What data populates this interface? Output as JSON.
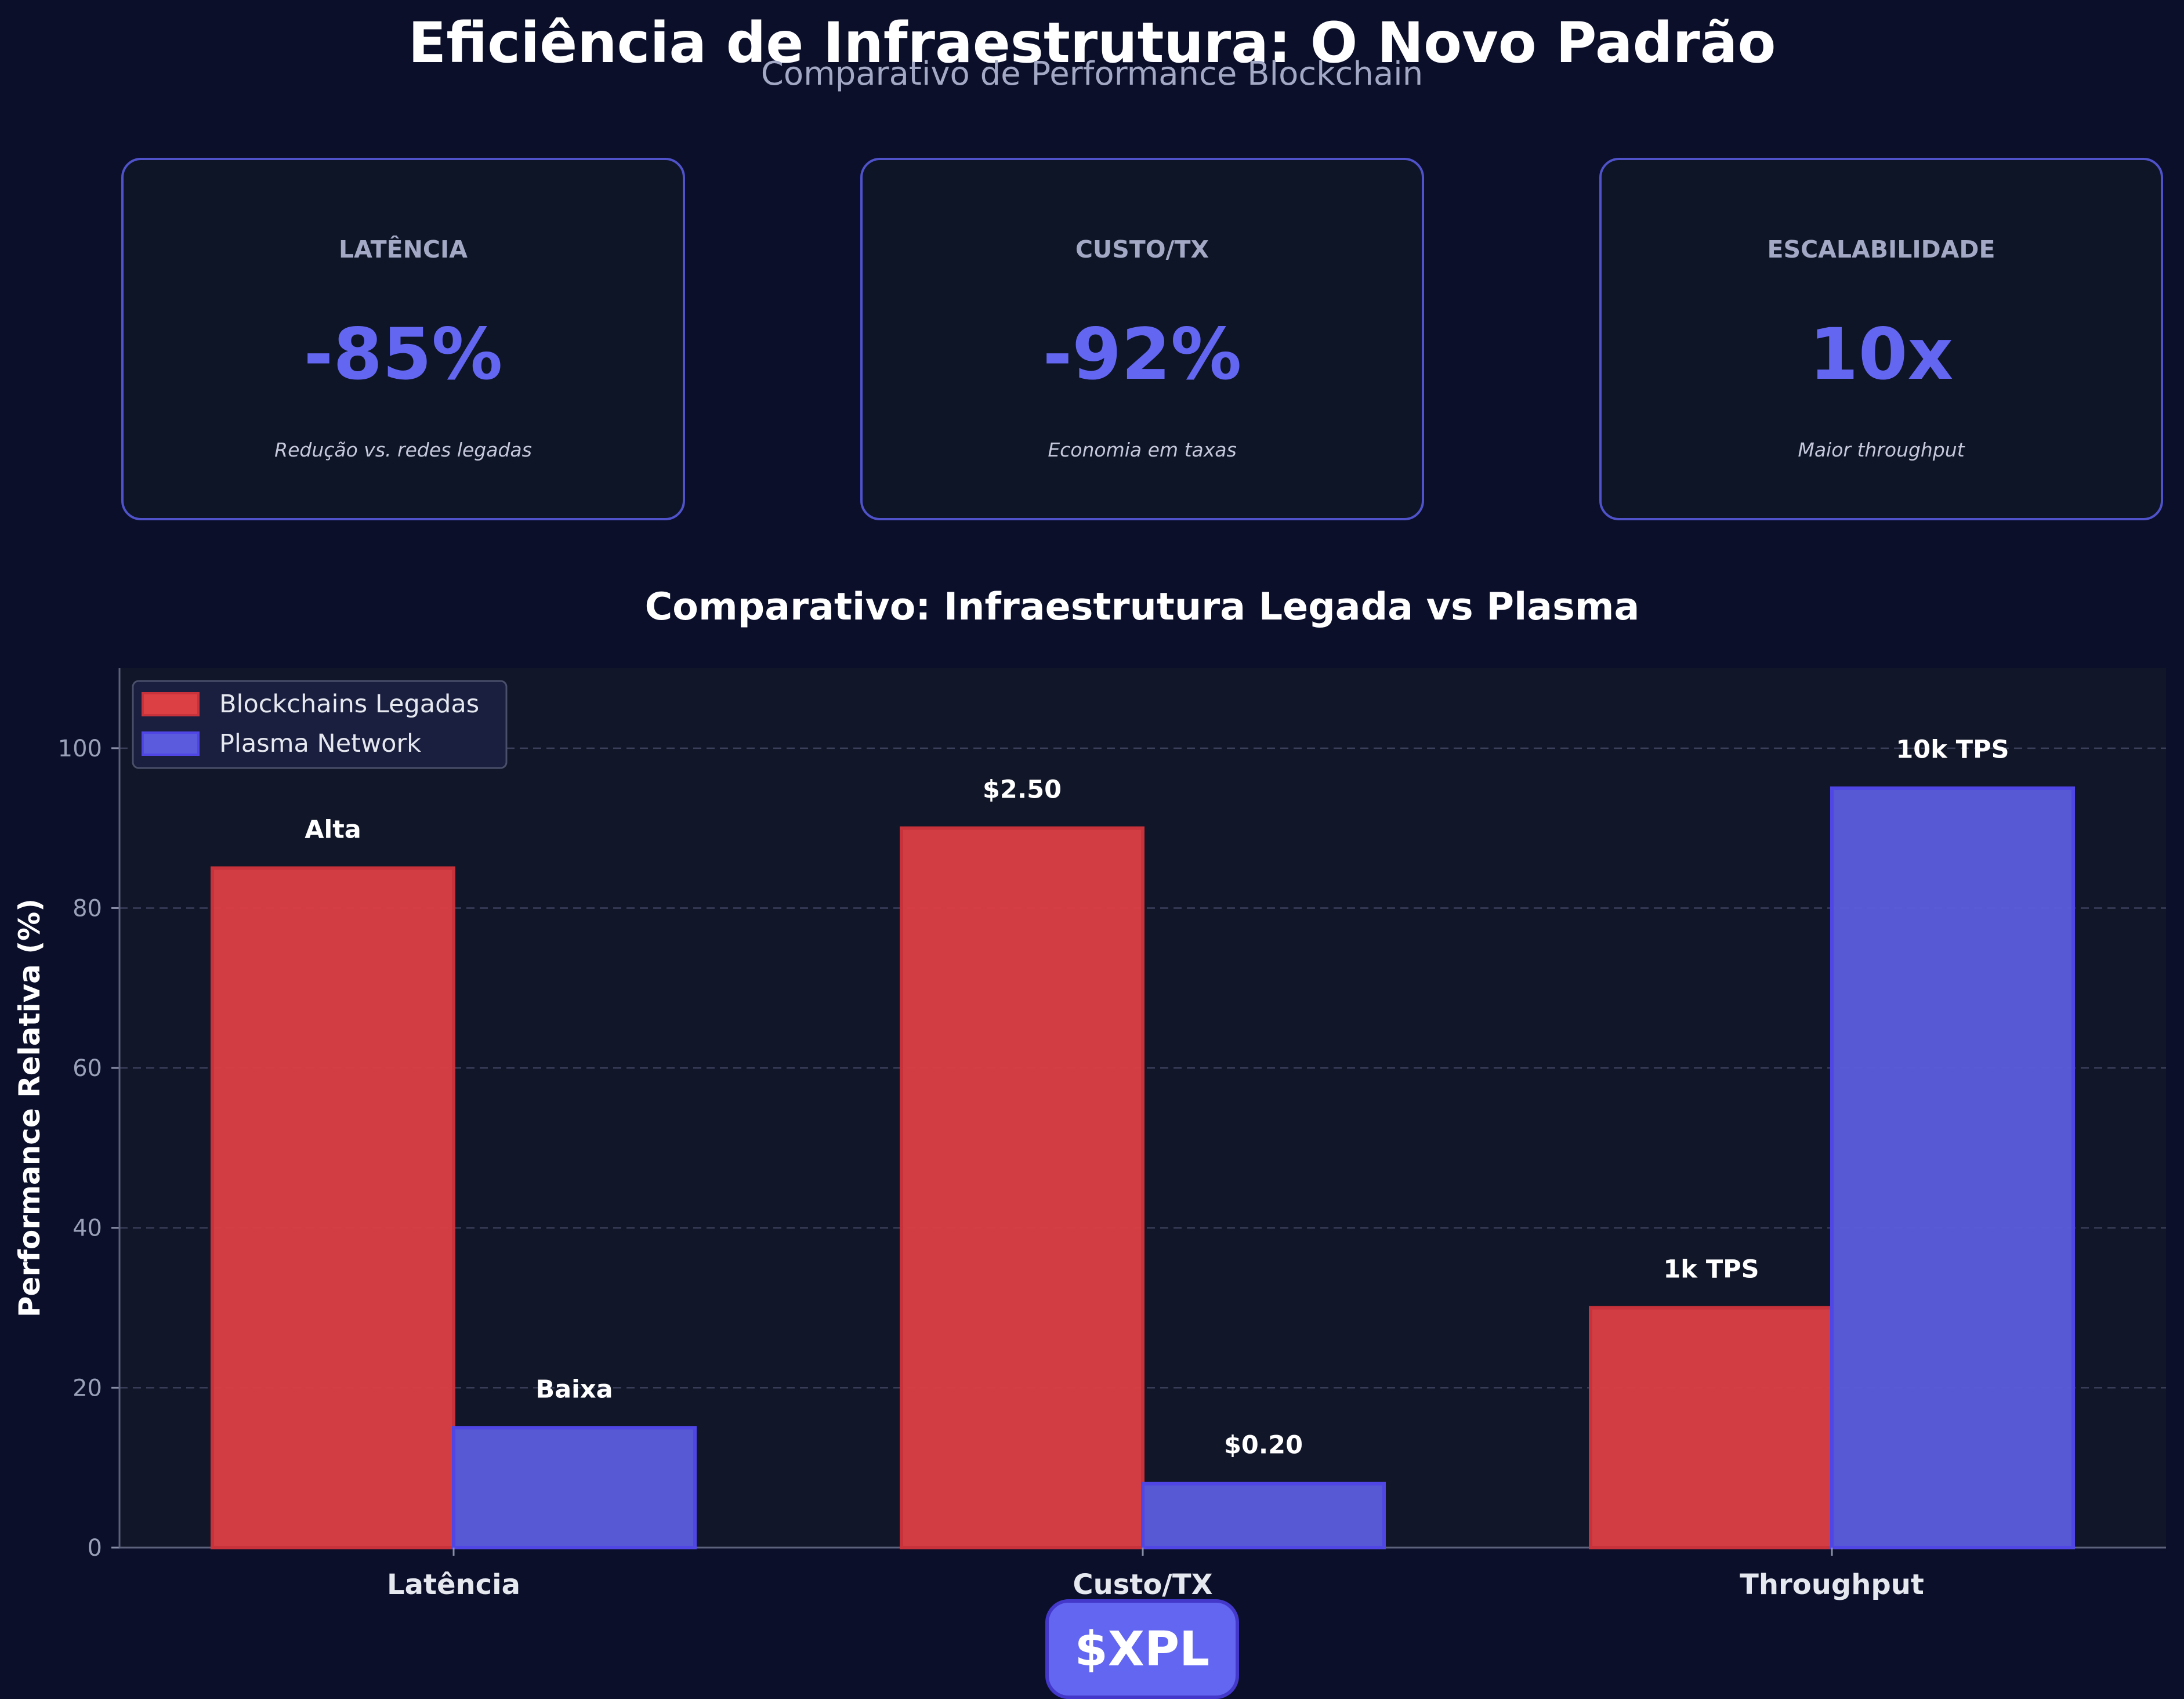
{
  "header": {
    "title": "Eficiência de Infraestrutura: O Novo Padrão",
    "subtitle": "Comparativo de Performance Blockchain"
  },
  "kpis": [
    {
      "label": "LATÊNCIA",
      "value": "-85%",
      "description": "Redução vs. redes legadas"
    },
    {
      "label": "CUSTO/TX",
      "value": "-92%",
      "description": "Economia em taxas"
    },
    {
      "label": "ESCALABILIDADE",
      "value": "10x",
      "description": "Maior throughput"
    }
  ],
  "chart_data": {
    "type": "bar",
    "title": "Comparativo: Infraestrutura Legada vs Plasma",
    "xlabel": "",
    "ylabel": "Performance Relativa (%)",
    "categories": [
      "Latência",
      "Custo/TX",
      "Throughput"
    ],
    "series": [
      {
        "name": "Blockchains Legadas",
        "values": [
          85,
          90,
          30
        ],
        "labels": [
          "Alta",
          "$2.50",
          "1k TPS"
        ],
        "color": "#dc3f44"
      },
      {
        "name": "Plasma Network",
        "values": [
          15,
          8,
          95
        ],
        "labels": [
          "Baixa",
          "$0.20",
          "10k TPS"
        ],
        "color": "#5b5cdd"
      }
    ],
    "ylim": [
      0,
      110
    ],
    "yticks": [
      0,
      20,
      40,
      60,
      80,
      100
    ],
    "grid": "y-dashed",
    "legend_position": "top-left"
  },
  "footer": {
    "badge": "$XPL"
  },
  "colors": {
    "background": "#0b0f2a",
    "card_background": "#0e1527",
    "card_border": "#4f52c9",
    "accent": "#6366f1",
    "plot_background": "#111628"
  }
}
